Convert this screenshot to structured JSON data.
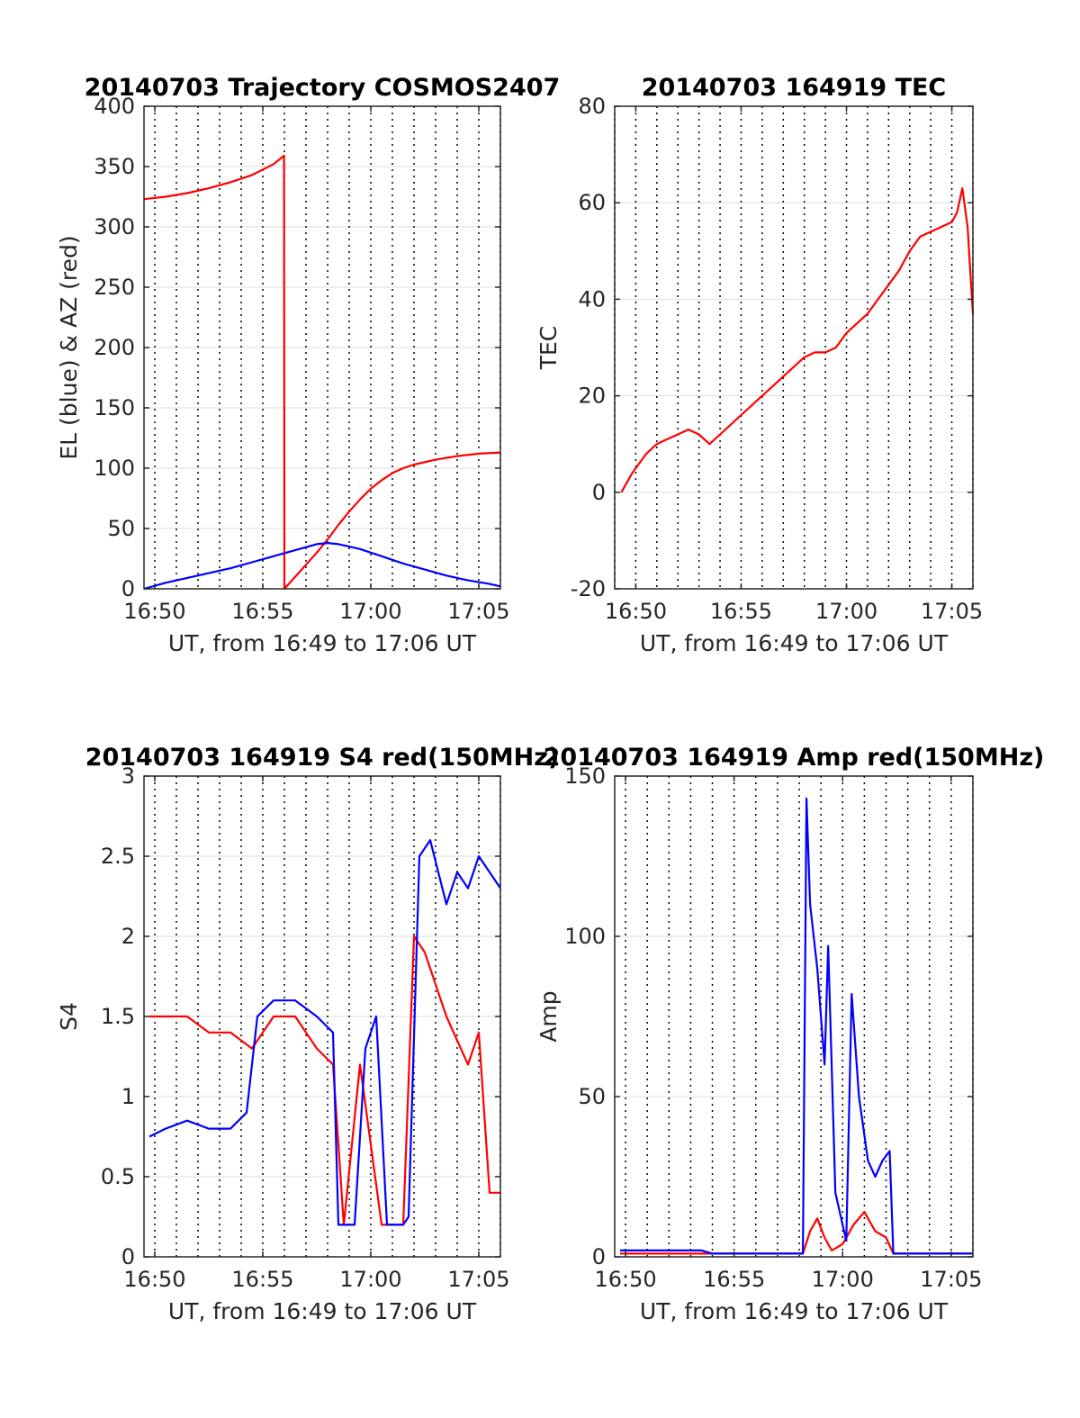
{
  "colors": {
    "red": "#ff0000",
    "blue": "#0000ff",
    "axis": "#262626",
    "grid": "#dddddd",
    "dotted": "#000000"
  },
  "chart_data": [
    {
      "id": "trajectory",
      "type": "line",
      "title": "20140703 Trajectory COSMOS2407",
      "xlabel": "UT, from 16:49 to 17:06 UT",
      "ylabel": "EL (blue) & AZ (red)",
      "xlim": [
        "16:49:30",
        "17:06:00"
      ],
      "ylim": [
        0,
        400
      ],
      "yticks": [
        0,
        50,
        100,
        150,
        200,
        250,
        300,
        350,
        400
      ],
      "xticks": [
        "16:50",
        "16:55",
        "17:00",
        "17:05"
      ],
      "grid": true,
      "series": [
        {
          "color": "red",
          "x": [
            "16:49:30",
            "16:50:30",
            "16:51:30",
            "16:52:30",
            "16:53:30",
            "16:54:30",
            "16:55:30",
            "16:55:59",
            "16:56:00",
            "16:56:30",
            "16:57:00",
            "16:57:30",
            "16:58:00",
            "16:58:30",
            "16:59:00",
            "16:59:30",
            "17:00:00",
            "17:00:30",
            "17:01:00",
            "17:01:30",
            "17:02:00",
            "17:03:00",
            "17:04:00",
            "17:05:00",
            "17:06:00"
          ],
          "y": [
            323,
            325,
            328,
            332,
            337,
            343,
            352,
            359,
            0,
            10,
            20,
            30,
            41,
            53,
            64,
            74,
            83,
            90,
            96,
            100,
            103,
            107,
            110,
            112,
            113
          ]
        },
        {
          "color": "blue",
          "x": [
            "16:49:30",
            "16:50:30",
            "16:51:30",
            "16:52:30",
            "16:53:30",
            "16:54:30",
            "16:55:30",
            "16:56:30",
            "16:57:30",
            "16:58:00",
            "16:58:30",
            "16:59:30",
            "17:00:30",
            "17:01:30",
            "17:02:30",
            "17:03:30",
            "17:04:30",
            "17:05:30",
            "17:06:00"
          ],
          "y": [
            0,
            5,
            9,
            13,
            17,
            22,
            27,
            32,
            37,
            38,
            37,
            33,
            27,
            21,
            16,
            11,
            7,
            4,
            2
          ]
        }
      ]
    },
    {
      "id": "tec",
      "type": "line",
      "title": "20140703 164919 TEC",
      "xlabel": "UT, from 16:49 to 17:06 UT",
      "ylabel": "TEC",
      "xlim": [
        "16:49:00",
        "17:06:00"
      ],
      "ylim": [
        -20,
        80
      ],
      "yticks": [
        -20,
        0,
        20,
        40,
        60,
        80
      ],
      "xticks": [
        "16:50",
        "16:55",
        "17:00",
        "17:05"
      ],
      "grid": true,
      "series": [
        {
          "color": "red",
          "x": [
            "16:49:19",
            "16:49:50",
            "16:50:30",
            "16:51:00",
            "16:51:30",
            "16:52:00",
            "16:52:30",
            "16:53:00",
            "16:53:30",
            "16:54:00",
            "16:54:30",
            "16:55:00",
            "16:55:30",
            "16:56:00",
            "16:56:30",
            "16:57:00",
            "16:57:30",
            "16:58:00",
            "16:58:30",
            "16:59:00",
            "16:59:30",
            "17:00:00",
            "17:00:30",
            "17:01:00",
            "17:01:30",
            "17:02:00",
            "17:02:30",
            "17:03:00",
            "17:03:30",
            "17:04:00",
            "17:04:30",
            "17:05:00",
            "17:05:15",
            "17:05:30",
            "17:05:45",
            "17:06:00"
          ],
          "y": [
            0,
            4,
            8,
            10,
            11,
            12,
            13,
            12,
            10,
            12,
            14,
            16,
            18,
            20,
            22,
            24,
            26,
            28,
            29,
            29,
            30,
            33,
            35,
            37,
            40,
            43,
            46,
            50,
            53,
            54,
            55,
            56,
            58,
            63,
            55,
            37
          ]
        }
      ]
    },
    {
      "id": "s4",
      "type": "line",
      "title": "20140703 164919 S4 red(150MHz)",
      "xlabel": "UT, from 16:49 to 17:06 UT",
      "ylabel": "S4",
      "xlim": [
        "16:49:30",
        "17:06:00"
      ],
      "ylim": [
        0,
        3
      ],
      "yticks": [
        0,
        0.5,
        1,
        1.5,
        2,
        2.5,
        3
      ],
      "xticks": [
        "16:50",
        "16:55",
        "17:00",
        "17:05"
      ],
      "grid": true,
      "series": [
        {
          "color": "red",
          "x": [
            "16:49:45",
            "16:50:30",
            "16:51:30",
            "16:52:30",
            "16:53:30",
            "16:54:30",
            "16:55:30",
            "16:56:30",
            "16:57:30",
            "16:58:15",
            "16:58:45",
            "16:59:30",
            "17:00:30",
            "17:01:30",
            "17:02:00",
            "17:02:30",
            "17:03:30",
            "17:04:30",
            "17:05:00",
            "17:05:30",
            "17:06:00"
          ],
          "y": [
            1.5,
            1.5,
            1.5,
            1.4,
            1.4,
            1.3,
            1.5,
            1.5,
            1.3,
            1.2,
            0.2,
            1.2,
            0.2,
            0.2,
            2.0,
            1.9,
            1.5,
            1.2,
            1.4,
            0.4,
            0.4
          ]
        },
        {
          "color": "blue",
          "x": [
            "16:49:45",
            "16:50:30",
            "16:51:30",
            "16:52:30",
            "16:53:30",
            "16:54:15",
            "16:54:45",
            "16:55:30",
            "16:56:30",
            "16:57:30",
            "16:58:15",
            "16:58:30",
            "16:59:15",
            "16:59:45",
            "17:00:15",
            "17:00:45",
            "17:01:30",
            "17:01:45",
            "17:02:15",
            "17:02:45",
            "17:03:30",
            "17:04:00",
            "17:04:30",
            "17:05:00",
            "17:05:30",
            "17:06:00"
          ],
          "y": [
            0.75,
            0.8,
            0.85,
            0.8,
            0.8,
            0.9,
            1.5,
            1.6,
            1.6,
            1.5,
            1.4,
            0.2,
            0.2,
            1.3,
            1.5,
            0.2,
            0.2,
            0.25,
            2.5,
            2.6,
            2.2,
            2.4,
            2.3,
            2.5,
            2.4,
            2.3
          ]
        }
      ]
    },
    {
      "id": "amp",
      "type": "line",
      "title": "20140703 164919 Amp red(150MHz)",
      "xlabel": "UT, from 16:49 to 17:06 UT",
      "ylabel": "Amp",
      "xlim": [
        "16:49:30",
        "17:06:00"
      ],
      "ylim": [
        0,
        150
      ],
      "yticks": [
        0,
        50,
        100,
        150
      ],
      "xticks": [
        "16:50",
        "16:55",
        "17:00",
        "17:05"
      ],
      "grid": true,
      "series": [
        {
          "color": "red",
          "x": [
            "16:49:45",
            "16:58:10",
            "16:58:30",
            "16:58:50",
            "16:59:10",
            "16:59:30",
            "17:00:00",
            "17:00:30",
            "17:01:00",
            "17:01:30",
            "17:02:00",
            "17:02:20",
            "17:06:00"
          ],
          "y": [
            1,
            1,
            8,
            12,
            6,
            2,
            4,
            10,
            14,
            8,
            6,
            1,
            1
          ]
        },
        {
          "color": "blue",
          "x": [
            "16:49:45",
            "16:53:30",
            "16:54:00",
            "16:58:10",
            "16:58:20",
            "16:58:30",
            "16:58:50",
            "16:59:10",
            "16:59:20",
            "16:59:40",
            "17:00:10",
            "17:00:25",
            "17:00:45",
            "17:01:10",
            "17:01:30",
            "17:01:50",
            "17:02:10",
            "17:02:20",
            "17:06:00"
          ],
          "y": [
            2,
            2,
            1,
            1,
            143,
            110,
            90,
            60,
            97,
            20,
            5,
            82,
            50,
            30,
            25,
            30,
            33,
            1,
            1
          ]
        }
      ]
    }
  ]
}
